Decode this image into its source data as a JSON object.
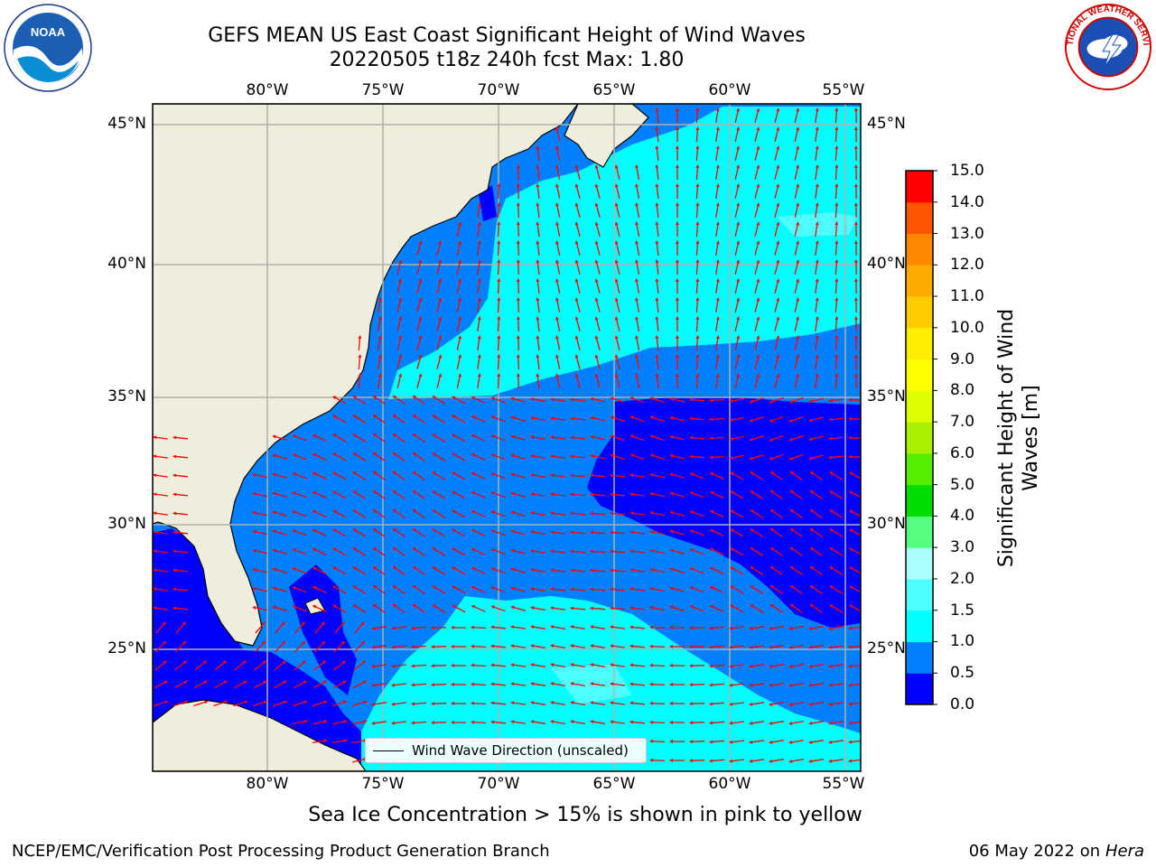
{
  "title": {
    "line1": "GEFS MEAN US East Coast Significant Height of Wind Waves",
    "line2": "20220505 t18z 240h fcst   Max: 1.80"
  },
  "axes": {
    "lon_labels": [
      "80°W",
      "75°W",
      "70°W",
      "65°W",
      "60°W",
      "55°W"
    ],
    "lon_values": [
      -80,
      -75,
      -70,
      -65,
      -60,
      -55
    ],
    "lat_labels": [
      "45°N",
      "40°N",
      "35°N",
      "30°N",
      "25°N"
    ],
    "lat_values": [
      45,
      40,
      35,
      30,
      25
    ],
    "lon_range": [
      -85,
      -54.3
    ],
    "lat_range": [
      20.5,
      45.9
    ]
  },
  "colorbar": {
    "label": "Significant Height of Wind Waves [m]",
    "ticks": [
      "15.0",
      "14.0",
      "13.0",
      "12.0",
      "11.0",
      "10.0",
      "9.0",
      "8.0",
      "7.0",
      "6.0",
      "5.0",
      "4.0",
      "3.0",
      "2.0",
      "1.5",
      "1.0",
      "0.5",
      "0.0"
    ],
    "levels": [
      0.0,
      0.5,
      1.0,
      1.5,
      2.0,
      3.0,
      4.0,
      5.0,
      6.0,
      7.0,
      8.0,
      9.0,
      10.0,
      11.0,
      12.0,
      13.0,
      14.0,
      15.0
    ],
    "colors": [
      "#0000ff",
      "#0080ff",
      "#00ffff",
      "#4dffff",
      "#aaffff",
      "#55ff80",
      "#00dd00",
      "#55ee00",
      "#aaee00",
      "#ddff00",
      "#ffff00",
      "#ffee00",
      "#ffcc00",
      "#ffaa00",
      "#ff8800",
      "#ff5500",
      "#ff0000"
    ]
  },
  "colors": {
    "land": "#efeedd",
    "arrow": "#ff0000",
    "grid": "#b0b0b0",
    "coast": "#000000"
  },
  "legend": {
    "label": "Wind Wave Direction (unscaled)"
  },
  "logos": {
    "noaa_text": "NOAA",
    "nws_text": "NATIONAL WEATHER SERVICE"
  },
  "footer": {
    "note": "Sea Ice Concentration > 15% is shown in pink to yellow",
    "credit": "NCEP/EMC/Verification Post Processing Product Generation Branch",
    "date": "06 May 2022",
    "on_word": "on",
    "host": "Hera"
  }
}
